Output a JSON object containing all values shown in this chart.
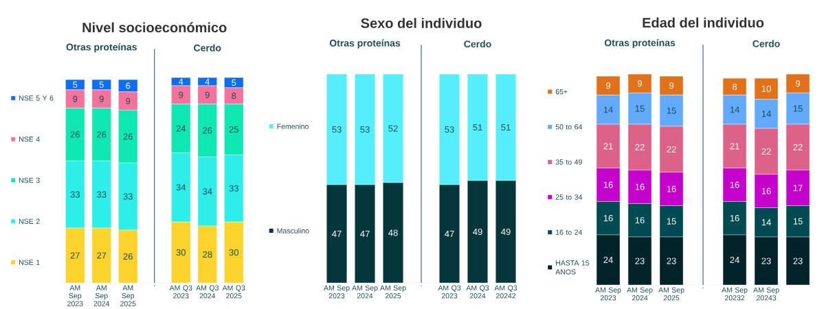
{
  "chart_data": [
    {
      "type": "bar",
      "stacked": true,
      "title": "Nivel socioeconómico",
      "legend": "left",
      "data_labels": true,
      "tick_labels": "x",
      "annotations": [
        "Otras proteínas",
        "Cerdo"
      ],
      "ref_lines": [
        {
          "axis": "x",
          "value": ".",
          "color": "#2f5f66"
        }
      ],
      "categories": [
        "AM Sep 2023",
        "AM Sep 2024",
        "AM Sep 2025",
        ".",
        "AM Q3 2023",
        "AM Q3 2024",
        "AM Q3 2025"
      ],
      "series": [
        {
          "name": "NSE 1",
          "color": "#fcd22c",
          "values": [
            27,
            27,
            26,
            null,
            30,
            28,
            30
          ]
        },
        {
          "name": "NSE 2",
          "color": "#2eeeea",
          "values": [
            33,
            33,
            33,
            null,
            34,
            34,
            33
          ]
        },
        {
          "name": "NSE 3",
          "color": "#10e8b4",
          "values": [
            26,
            26,
            26,
            null,
            24,
            26,
            25
          ]
        },
        {
          "name": "NSE 4",
          "color": "#f4739c",
          "values": [
            9,
            9,
            9,
            null,
            9,
            9,
            8
          ]
        },
        {
          "name": "NSE 5 Y 6",
          "color": "#0c6ef0",
          "values": [
            5,
            5,
            6,
            null,
            4,
            4,
            5
          ]
        }
      ]
    },
    {
      "type": "bar",
      "stacked": true,
      "title": "Sexo del individuo",
      "legend": "left",
      "data_labels": true,
      "tick_labels": "x",
      "annotations": [
        "Otras proteínas",
        "Cerdo"
      ],
      "ref_lines": [
        {
          "axis": "x",
          "value": ".",
          "color": "#2f5f66"
        }
      ],
      "categories": [
        "AM Sep 2023",
        "AM Sep 2024",
        "AM Sep 2025",
        ".",
        "AM Q3 2023",
        "AM Q3 2024",
        "AM Q3 20242"
      ],
      "series": [
        {
          "name": "Masculino",
          "color": "#04363c",
          "values": [
            47,
            47,
            48,
            null,
            47,
            49,
            49
          ]
        },
        {
          "name": "Femenino",
          "color": "#55eefc",
          "values": [
            53,
            53,
            52,
            null,
            53,
            51,
            51
          ]
        }
      ]
    },
    {
      "type": "bar",
      "stacked": true,
      "title": "Edad del individuo",
      "legend": "left",
      "data_labels": true,
      "tick_labels": "x",
      "annotations": [
        "Otras proteínas",
        "Cerdo"
      ],
      "ref_lines": [
        {
          "axis": "x",
          "value": ".",
          "color": "#2f5f66"
        }
      ],
      "categories": [
        "AM Sep 2023",
        "AM Sep 2024",
        "AM Sep 2025",
        ".",
        "AM Sep 20232",
        "AM Sep 20243",
        null
      ],
      "series": [
        {
          "name": "HASTA 15 ANOS",
          "color": "#03232a",
          "values": [
            24,
            23,
            23,
            null,
            24,
            23,
            23
          ]
        },
        {
          "name": "16 to 24",
          "color": "#024a52",
          "values": [
            16,
            16,
            15,
            null,
            16,
            14,
            15
          ]
        },
        {
          "name": "25 to 34",
          "color": "#c402cc",
          "values": [
            16,
            16,
            16,
            null,
            16,
            16,
            17
          ]
        },
        {
          "name": "35 to 49",
          "color": "#dc628a",
          "values": [
            21,
            22,
            22,
            null,
            21,
            22,
            22
          ]
        },
        {
          "name": "50 to 64",
          "color": "#62aafc",
          "values": [
            14,
            15,
            15,
            null,
            14,
            14,
            15
          ]
        },
        {
          "name": "65+",
          "color": "#e1721a",
          "values": [
            9,
            9,
            9,
            null,
            8,
            10,
            9
          ]
        }
      ]
    }
  ]
}
